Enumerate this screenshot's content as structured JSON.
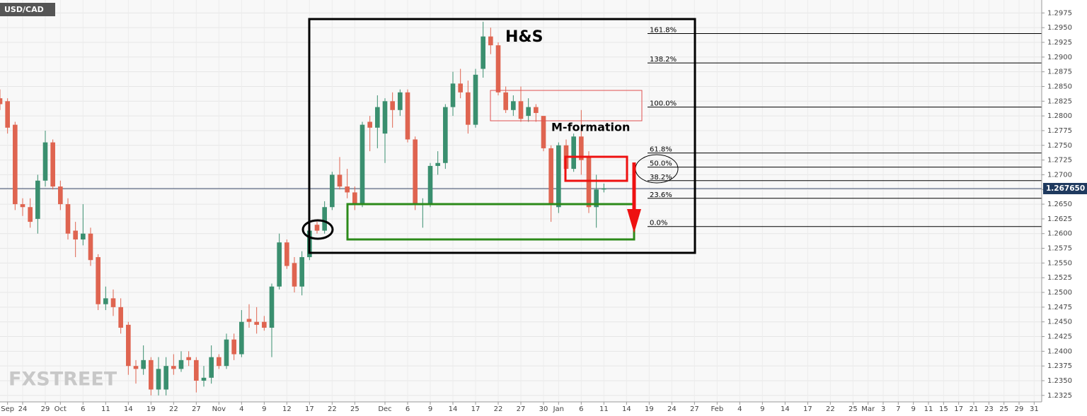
{
  "chart_data": {
    "type": "candlestick",
    "title": "USD/CAD",
    "watermark": "FXSTREET",
    "annotations": [
      "H&S",
      "M-formation"
    ],
    "up_color": "#3a8f6f",
    "down_color": "#df6450",
    "grid": true,
    "xlim": [
      0,
      138
    ],
    "ylim": [
      1.2314,
      1.2997
    ],
    "xticks": [
      {
        "value": 1,
        "label": "Sep"
      },
      {
        "value": 3,
        "label": "24"
      },
      {
        "value": 6,
        "label": "29"
      },
      {
        "value": 8,
        "label": "Oct"
      },
      {
        "value": 11,
        "label": "6"
      },
      {
        "value": 14,
        "label": "11"
      },
      {
        "value": 17,
        "label": "14"
      },
      {
        "value": 20,
        "label": "19"
      },
      {
        "value": 23,
        "label": "22"
      },
      {
        "value": 26,
        "label": "27"
      },
      {
        "value": 29,
        "label": "Nov"
      },
      {
        "value": 32,
        "label": "4"
      },
      {
        "value": 35,
        "label": "9"
      },
      {
        "value": 38,
        "label": "12"
      },
      {
        "value": 41,
        "label": "17"
      },
      {
        "value": 44,
        "label": "22"
      },
      {
        "value": 47,
        "label": "25"
      },
      {
        "value": 51,
        "label": "Dec"
      },
      {
        "value": 54,
        "label": "6"
      },
      {
        "value": 57,
        "label": "9"
      },
      {
        "value": 60,
        "label": "14"
      },
      {
        "value": 63,
        "label": "17"
      },
      {
        "value": 66,
        "label": "22"
      },
      {
        "value": 69,
        "label": "27"
      },
      {
        "value": 72,
        "label": "30"
      },
      {
        "value": 74,
        "label": "Jan"
      },
      {
        "value": 77,
        "label": "6"
      },
      {
        "value": 80,
        "label": "11"
      },
      {
        "value": 83,
        "label": "14"
      },
      {
        "value": 86,
        "label": "19"
      },
      {
        "value": 89,
        "label": "24"
      },
      {
        "value": 92,
        "label": "27"
      },
      {
        "value": 95,
        "label": "Feb"
      },
      {
        "value": 98,
        "label": "4"
      },
      {
        "value": 101,
        "label": "9"
      },
      {
        "value": 104,
        "label": "14"
      },
      {
        "value": 107,
        "label": "17"
      },
      {
        "value": 110,
        "label": "22"
      },
      {
        "value": 113,
        "label": "25"
      },
      {
        "value": 115,
        "label": "Mar"
      },
      {
        "value": 117,
        "label": "3"
      },
      {
        "value": 119,
        "label": "7"
      },
      {
        "value": 121,
        "label": "9"
      },
      {
        "value": 123,
        "label": "11"
      },
      {
        "value": 125,
        "label": "15"
      },
      {
        "value": 127,
        "label": "17"
      },
      {
        "value": 129,
        "label": "21"
      },
      {
        "value": 131,
        "label": "23"
      },
      {
        "value": 133,
        "label": "25"
      },
      {
        "value": 135,
        "label": "29"
      },
      {
        "value": 137,
        "label": "31"
      }
    ],
    "yticks": [
      1.2325,
      {
        "value": 1.235,
        "label": "1.2350"
      },
      1.2375,
      {
        "value": 1.24,
        "label": "1.2400"
      },
      1.2425,
      {
        "value": 1.245,
        "label": "1.2450"
      },
      1.2475,
      {
        "value": 1.25,
        "label": "1.2500"
      },
      1.2525,
      {
        "value": 1.255,
        "label": "1.2550"
      },
      1.2575,
      {
        "value": 1.26,
        "label": "1.2600"
      },
      1.2625,
      {
        "value": 1.265,
        "label": "1.2650"
      },
      1.2675,
      {
        "value": 1.27,
        "label": "1.2700"
      },
      1.2725,
      {
        "value": 1.275,
        "label": "1.2750"
      },
      1.2775,
      {
        "value": 1.28,
        "label": "1.2800"
      },
      1.2825,
      {
        "value": 1.285,
        "label": "1.2850"
      },
      1.2875,
      {
        "value": 1.29,
        "label": "1.2900"
      },
      1.2925,
      {
        "value": 1.295,
        "label": "1.2950"
      },
      1.2975
    ],
    "current_price": {
      "value": 1.26765,
      "label": "1.267650"
    },
    "fib_levels": [
      {
        "label": "161.8%",
        "value": 1.294
      },
      {
        "label": "138.2%",
        "value": 1.289
      },
      {
        "label": "100.0%",
        "value": 1.2815
      },
      {
        "label": "61.8%",
        "value": 1.2737
      },
      {
        "label": "50.0%",
        "value": 1.2713
      },
      {
        "label": "38.2%",
        "value": 1.269
      },
      {
        "label": "23.6%",
        "value": 1.266
      },
      {
        "label": "0.0%",
        "value": 1.2612
      }
    ],
    "x": [
      0,
      1,
      2,
      3,
      4,
      5,
      6,
      7,
      8,
      9,
      10,
      11,
      12,
      13,
      14,
      15,
      16,
      17,
      18,
      19,
      20,
      21,
      22,
      23,
      24,
      25,
      26,
      27,
      28,
      29,
      30,
      31,
      32,
      33,
      34,
      35,
      36,
      37,
      38,
      39,
      40,
      41,
      42,
      43,
      44,
      45,
      46,
      47,
      48,
      49,
      50,
      51,
      52,
      53,
      54,
      55,
      56,
      57,
      58,
      59,
      60,
      61,
      62,
      63,
      64,
      65,
      66,
      67,
      68,
      69,
      70,
      71,
      72,
      73,
      74,
      75,
      76,
      77,
      78,
      79,
      80
    ],
    "open": [
      1.283,
      1.2825,
      1.2785,
      1.265,
      1.2645,
      1.2625,
      1.269,
      1.2755,
      1.268,
      1.265,
      1.2605,
      1.259,
      1.26,
      1.256,
      1.248,
      1.249,
      1.2475,
      1.2445,
      1.2375,
      1.237,
      1.2385,
      1.2335,
      1.2335,
      1.2375,
      1.237,
      1.239,
      1.2385,
      1.235,
      1.2355,
      1.239,
      1.2375,
      1.242,
      1.2395,
      1.2455,
      1.245,
      1.245,
      1.244,
      1.251,
      1.2585,
      1.255,
      1.251,
      1.256,
      1.2615,
      1.2605,
      1.2645,
      1.27,
      1.268,
      1.267,
      1.265,
      1.279,
      1.278,
      1.277,
      1.2825,
      1.281,
      1.284,
      1.276,
      1.265,
      1.265,
      1.2715,
      1.272,
      1.2815,
      1.2855,
      1.284,
      1.2785,
      1.288,
      1.2935,
      1.292,
      1.284,
      1.281,
      1.2825,
      1.28,
      1.2815,
      1.28,
      1.2745,
      1.2645,
      1.275,
      1.271,
      1.2765,
      1.273,
      1.2645,
      1.2675
    ],
    "high": [
      1.2845,
      1.283,
      1.279,
      1.266,
      1.266,
      1.27,
      1.2775,
      1.276,
      1.269,
      1.266,
      1.262,
      1.265,
      1.261,
      1.2565,
      1.251,
      1.2505,
      1.249,
      1.245,
      1.2385,
      1.241,
      1.239,
      1.239,
      1.239,
      1.2395,
      1.24,
      1.24,
      1.239,
      1.2375,
      1.241,
      1.2395,
      1.243,
      1.243,
      1.247,
      1.248,
      1.2475,
      1.246,
      1.2515,
      1.26,
      1.259,
      1.256,
      1.257,
      1.262,
      1.262,
      1.2655,
      1.2705,
      1.273,
      1.271,
      1.268,
      1.279,
      1.28,
      1.2835,
      1.283,
      1.284,
      1.2845,
      1.2845,
      1.2765,
      1.266,
      1.272,
      1.274,
      1.282,
      1.2875,
      1.288,
      1.286,
      1.288,
      1.296,
      1.295,
      1.2925,
      1.285,
      1.2835,
      1.285,
      1.283,
      1.282,
      1.28,
      1.275,
      1.2755,
      1.276,
      1.277,
      1.281,
      1.274,
      1.27,
      1.2685
    ],
    "low": [
      1.281,
      1.277,
      1.264,
      1.263,
      1.261,
      1.26,
      1.268,
      1.2675,
      1.264,
      1.259,
      1.256,
      1.258,
      1.2545,
      1.247,
      1.247,
      1.246,
      1.243,
      1.236,
      1.2345,
      1.236,
      1.2325,
      1.2325,
      1.2325,
      1.236,
      1.2365,
      1.2375,
      1.233,
      1.234,
      1.2345,
      1.237,
      1.237,
      1.2385,
      1.239,
      1.244,
      1.243,
      1.2435,
      1.239,
      1.2505,
      1.254,
      1.25,
      1.2495,
      1.2555,
      1.26,
      1.26,
      1.264,
      1.2675,
      1.266,
      1.264,
      1.2645,
      1.274,
      1.2745,
      1.272,
      1.278,
      1.28,
      1.2755,
      1.264,
      1.261,
      1.2645,
      1.27,
      1.271,
      1.28,
      1.283,
      1.277,
      1.278,
      1.2865,
      1.2905,
      1.2835,
      1.2805,
      1.28,
      1.279,
      1.279,
      1.279,
      1.274,
      1.262,
      1.2635,
      1.27,
      1.2705,
      1.27,
      1.2635,
      1.261,
      1.267
    ],
    "close": [
      1.282,
      1.278,
      1.265,
      1.2645,
      1.262,
      1.269,
      1.2755,
      1.268,
      1.265,
      1.26,
      1.259,
      1.26,
      1.2555,
      1.248,
      1.249,
      1.2475,
      1.244,
      1.2375,
      1.237,
      1.2385,
      1.2335,
      1.237,
      1.2375,
      1.237,
      1.2385,
      1.2385,
      1.235,
      1.2355,
      1.239,
      1.2375,
      1.242,
      1.2395,
      1.245,
      1.245,
      1.2445,
      1.244,
      1.251,
      1.2585,
      1.2545,
      1.251,
      1.256,
      1.2605,
      1.2605,
      1.2645,
      1.27,
      1.268,
      1.267,
      1.265,
      1.2785,
      1.278,
      1.2815,
      1.2825,
      1.281,
      1.284,
      1.276,
      1.265,
      1.265,
      1.2715,
      1.272,
      1.2815,
      1.2855,
      1.284,
      1.2785,
      1.287,
      1.2935,
      1.292,
      1.284,
      1.281,
      1.2825,
      1.2795,
      1.2815,
      1.2805,
      1.2745,
      1.265,
      1.275,
      1.271,
      1.2765,
      1.2725,
      1.2645,
      1.2675,
      1.2677
    ]
  }
}
